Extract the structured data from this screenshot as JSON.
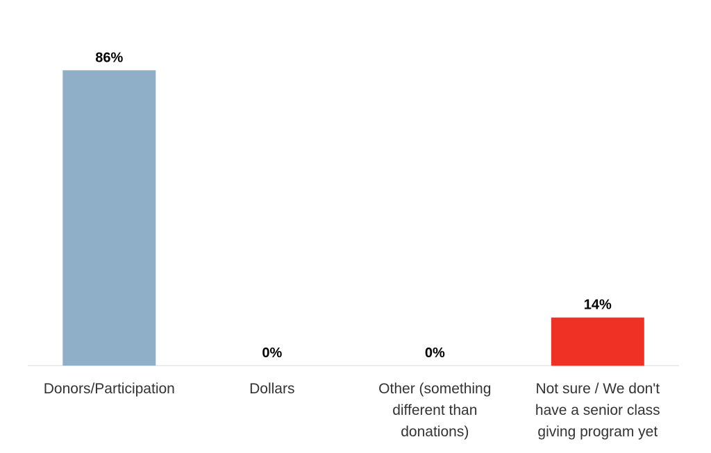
{
  "chart_data": {
    "type": "bar",
    "categories": [
      [
        "Donors/Participation"
      ],
      [
        "Dollars"
      ],
      [
        "Other (something",
        "different than",
        "donations)"
      ],
      [
        "Not sure / We don't",
        "have a senior class",
        "giving program yet"
      ]
    ],
    "values": [
      86,
      0,
      0,
      14
    ],
    "value_labels": [
      "86%",
      "0%",
      "0%",
      "14%"
    ],
    "bar_colors": [
      "#8FAFC8",
      "#8FAFC8",
      "#8FAFC8",
      "#EE3124"
    ],
    "ylim": [
      0,
      100
    ],
    "grid": false,
    "title": "",
    "xlabel": "",
    "ylabel": ""
  }
}
